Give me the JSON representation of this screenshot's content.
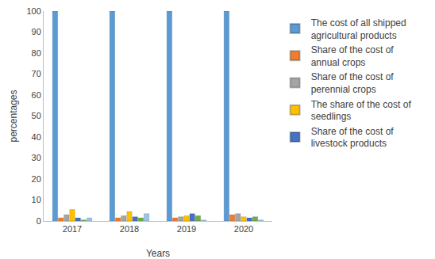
{
  "chart_data": {
    "type": "bar",
    "x_label": "Years",
    "y_label": "percentages",
    "categories": [
      "2017",
      "2018",
      "2019",
      "2020"
    ],
    "series": [
      {
        "name": "The cost of all shipped agricultural products",
        "color": "#5b9bd5",
        "values": [
          100,
          100,
          100,
          100
        ]
      },
      {
        "name": "Share of the cost of annual crops",
        "color": "#ed7d31",
        "values": [
          1.5,
          1.5,
          1.5,
          3
        ]
      },
      {
        "name": "Share of the cost of perennial crops",
        "color": "#a5a5a5",
        "values": [
          3,
          2.5,
          2,
          3.5
        ]
      },
      {
        "name": "The share of the cost of seedlings",
        "color": "#ffc000",
        "values": [
          5.5,
          4.5,
          2.5,
          2
        ]
      },
      {
        "name": "Share of the cost of livestock products",
        "color": "#4472c4",
        "values": [
          1.5,
          2,
          3.5,
          1.5
        ]
      },
      {
        "color": "#70ad47",
        "values": [
          0.5,
          1.5,
          2.5,
          2
        ]
      },
      {
        "color": "#9dc3e6",
        "values": [
          1.5,
          3.5,
          0.5,
          0.5
        ]
      }
    ],
    "ylim": [
      0,
      100
    ],
    "yticks": [
      0,
      10,
      20,
      30,
      40,
      50,
      60,
      70,
      80,
      90,
      100
    ],
    "grid": false,
    "legend": "right"
  }
}
